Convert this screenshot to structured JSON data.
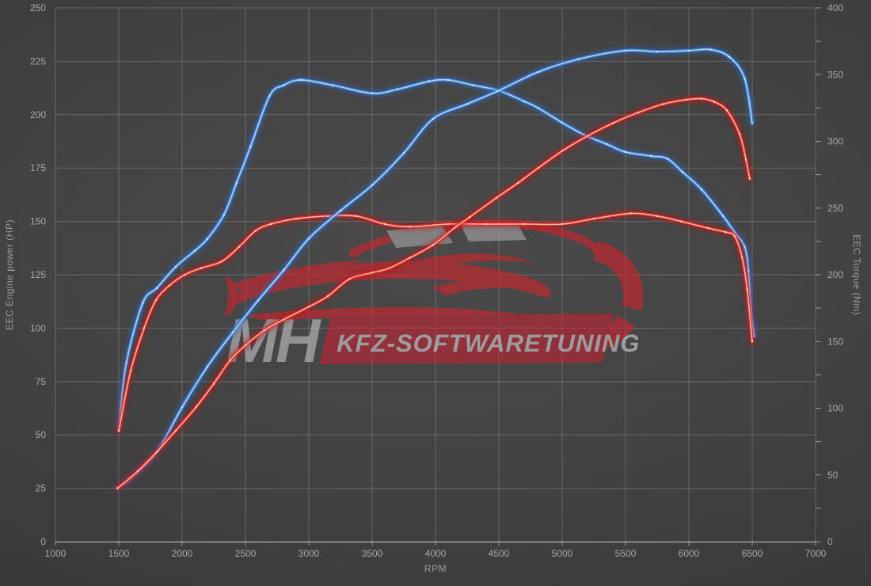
{
  "watermark": {
    "brand": "MH",
    "banner_text": "KFZ-SOFTWARETUNING"
  },
  "chart_data": {
    "type": "line",
    "title": "",
    "xlabel": "RPM",
    "ylabel_left": "EEC Engine power (HP)",
    "ylabel_right": "EEC Torque (Nm)",
    "x_range": [
      1000,
      7000
    ],
    "x_ticks": [
      1000,
      1500,
      2000,
      2500,
      3000,
      3500,
      4000,
      4500,
      5000,
      5500,
      6000,
      6500,
      7000
    ],
    "y_left_range": [
      0,
      250
    ],
    "y_left_ticks": [
      0,
      25,
      50,
      75,
      100,
      125,
      150,
      175,
      200,
      225,
      250
    ],
    "y_right_range": [
      0,
      400
    ],
    "y_right_labels": [
      0,
      50,
      100,
      150,
      200,
      250,
      300,
      350,
      400
    ],
    "y_right_minor_step": 25,
    "grid": true,
    "legend": "none",
    "markers": true,
    "series_palette": {
      "blue": {
        "glow": "#2a66bd",
        "mid": "#4486d8",
        "core": "#b2d2f8"
      },
      "red": {
        "glow": "#b81714",
        "mid": "#e02c22",
        "core": "#ffb4ab"
      }
    },
    "series": [
      {
        "name": "torque-curve-blue",
        "axis": "right",
        "unit": "Nm",
        "color": "blue",
        "points": [
          [
            1500,
            85
          ],
          [
            1560,
            134
          ],
          [
            1690,
            179
          ],
          [
            1800,
            190
          ],
          [
            1950,
            206
          ],
          [
            2100,
            218
          ],
          [
            2200,
            227
          ],
          [
            2330,
            245
          ],
          [
            2430,
            269
          ],
          [
            2540,
            296
          ],
          [
            2690,
            334
          ],
          [
            2800,
            342
          ],
          [
            2940,
            346
          ],
          [
            3190,
            342
          ],
          [
            3500,
            336
          ],
          [
            3700,
            339
          ],
          [
            3950,
            345
          ],
          [
            4100,
            346
          ],
          [
            4300,
            342
          ],
          [
            4500,
            338
          ],
          [
            4700,
            330
          ],
          [
            4810,
            325
          ],
          [
            5000,
            314
          ],
          [
            5170,
            305
          ],
          [
            5350,
            298
          ],
          [
            5500,
            292
          ],
          [
            5700,
            289
          ],
          [
            5830,
            287
          ],
          [
            5950,
            277
          ],
          [
            6100,
            264
          ],
          [
            6270,
            244
          ],
          [
            6360,
            232
          ],
          [
            6440,
            221
          ],
          [
            6470,
            203
          ],
          [
            6490,
            174
          ],
          [
            6515,
            154
          ]
        ]
      },
      {
        "name": "torque-curve-red",
        "axis": "right",
        "unit": "Nm",
        "color": "red",
        "points": [
          [
            1500,
            83
          ],
          [
            1594,
            128
          ],
          [
            1700,
            160
          ],
          [
            1794,
            181
          ],
          [
            1900,
            192
          ],
          [
            2020,
            200
          ],
          [
            2150,
            205
          ],
          [
            2313,
            210
          ],
          [
            2450,
            221
          ],
          [
            2580,
            233
          ],
          [
            2700,
            238
          ],
          [
            2900,
            242
          ],
          [
            3150,
            244
          ],
          [
            3375,
            244
          ],
          [
            3600,
            238
          ],
          [
            3800,
            236
          ],
          [
            4100,
            238
          ],
          [
            4400,
            238
          ],
          [
            4700,
            238
          ],
          [
            5000,
            238
          ],
          [
            5250,
            242
          ],
          [
            5540,
            246
          ],
          [
            5750,
            244
          ],
          [
            5940,
            240
          ],
          [
            6150,
            235
          ],
          [
            6290,
            232
          ],
          [
            6360,
            229
          ],
          [
            6420,
            213
          ],
          [
            6460,
            189
          ],
          [
            6500,
            150
          ]
        ]
      },
      {
        "name": "power-curve-blue",
        "axis": "left",
        "unit": "HP",
        "color": "blue",
        "points": [
          [
            1490,
            25
          ],
          [
            1600,
            30
          ],
          [
            1800,
            42
          ],
          [
            2000,
            63
          ],
          [
            2200,
            82
          ],
          [
            2400,
            98
          ],
          [
            2600,
            113
          ],
          [
            2800,
            127
          ],
          [
            3000,
            142
          ],
          [
            3250,
            155
          ],
          [
            3500,
            167
          ],
          [
            3750,
            182
          ],
          [
            3980,
            198
          ],
          [
            4250,
            205
          ],
          [
            4490,
            211
          ],
          [
            4810,
            220
          ],
          [
            5130,
            226
          ],
          [
            5500,
            230
          ],
          [
            5750,
            229.5
          ],
          [
            6000,
            230
          ],
          [
            6170,
            230.5
          ],
          [
            6320,
            227
          ],
          [
            6440,
            217
          ],
          [
            6500,
            196
          ]
        ]
      },
      {
        "name": "power-curve-red",
        "axis": "left",
        "unit": "HP",
        "color": "red",
        "points": [
          [
            1490,
            25
          ],
          [
            1650,
            33
          ],
          [
            1800,
            42
          ],
          [
            1950,
            52
          ],
          [
            2110,
            63
          ],
          [
            2250,
            74
          ],
          [
            2380,
            85
          ],
          [
            2500,
            92
          ],
          [
            2650,
            99
          ],
          [
            2800,
            104
          ],
          [
            3000,
            110
          ],
          [
            3150,
            115
          ],
          [
            3320,
            123
          ],
          [
            3500,
            126
          ],
          [
            3630,
            128
          ],
          [
            3800,
            133
          ],
          [
            3980,
            139
          ],
          [
            4150,
            147
          ],
          [
            4270,
            152
          ],
          [
            4480,
            161
          ],
          [
            4650,
            168
          ],
          [
            4810,
            175
          ],
          [
            5000,
            183
          ],
          [
            5200,
            190
          ],
          [
            5400,
            196
          ],
          [
            5600,
            201
          ],
          [
            5800,
            205
          ],
          [
            5980,
            207
          ],
          [
            6100,
            207.5
          ],
          [
            6200,
            206
          ],
          [
            6300,
            202
          ],
          [
            6400,
            191
          ],
          [
            6450,
            179
          ],
          [
            6480,
            170
          ]
        ]
      }
    ]
  }
}
